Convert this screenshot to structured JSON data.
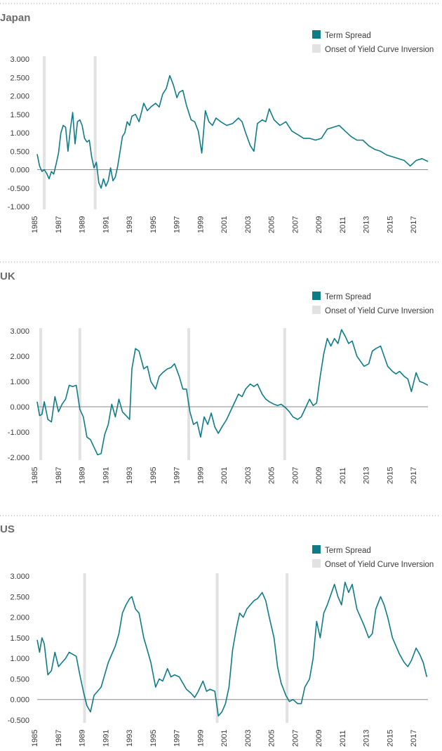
{
  "colors": {
    "term_spread": "#0e7c86",
    "inversion": "#e2e2e2",
    "axis": "#8a8a8a",
    "divider": "#9a9a9a",
    "title": "#6b6b6b",
    "text": "#3a3a3a"
  },
  "chart_data": [
    {
      "type": "line",
      "title": "Japan",
      "legend": {
        "placement": "top-right",
        "series_label": "Term Spread",
        "band_label": "Onset of Yield Curve Inversion"
      },
      "xlim": [
        1985,
        2018
      ],
      "x_ticks": [
        1985,
        1987,
        1989,
        1991,
        1993,
        1995,
        1997,
        1999,
        2001,
        2003,
        2005,
        2007,
        2009,
        2011,
        2013,
        2015,
        2017
      ],
      "ylim": [
        -1.0,
        3.0
      ],
      "y_ticks": [
        3.0,
        2.5,
        2.0,
        1.5,
        1.0,
        0.5,
        0.0,
        -0.5,
        -1.0
      ],
      "y_tick_labels": [
        "3.000",
        "2.500",
        "2.000",
        "1.500",
        "1.000",
        "0.500",
        "0.000",
        "-0.500",
        "-1.000"
      ],
      "inversion_onsets": [
        1985.6,
        1989.9
      ],
      "series": [
        {
          "name": "Term Spread",
          "x": [
            1985.0,
            1985.2,
            1985.4,
            1985.6,
            1985.8,
            1986.0,
            1986.2,
            1986.4,
            1986.6,
            1986.8,
            1987.0,
            1987.2,
            1987.4,
            1987.6,
            1987.8,
            1988.0,
            1988.2,
            1988.4,
            1988.6,
            1988.8,
            1989.0,
            1989.2,
            1989.4,
            1989.6,
            1989.8,
            1990.0,
            1990.2,
            1990.4,
            1990.6,
            1990.8,
            1991.0,
            1991.2,
            1991.4,
            1991.6,
            1991.8,
            1992.0,
            1992.2,
            1992.4,
            1992.6,
            1992.8,
            1993.0,
            1993.3,
            1993.6,
            1994.0,
            1994.3,
            1994.6,
            1995.0,
            1995.3,
            1995.6,
            1995.9,
            1996.2,
            1996.5,
            1996.8,
            1997.0,
            1997.3,
            1997.6,
            1998.0,
            1998.3,
            1998.6,
            1998.9,
            1999.2,
            1999.5,
            1999.8,
            2000.1,
            2000.5,
            2001.0,
            2001.5,
            2002.0,
            2002.3,
            2002.6,
            2003.0,
            2003.3,
            2003.6,
            2004.0,
            2004.3,
            2004.6,
            2005.0,
            2005.5,
            2006.0,
            2006.5,
            2007.0,
            2007.5,
            2008.0,
            2008.5,
            2009.0,
            2009.5,
            2010.0,
            2010.5,
            2011.0,
            2011.5,
            2012.0,
            2012.5,
            2013.0,
            2013.5,
            2014.0,
            2014.5,
            2015.0,
            2015.5,
            2016.0,
            2016.5,
            2017.0,
            2017.5,
            2018.0
          ],
          "values": [
            0.42,
            0.1,
            -0.05,
            0.0,
            -0.1,
            -0.25,
            -0.05,
            -0.12,
            0.15,
            0.45,
            1.0,
            1.2,
            1.15,
            0.5,
            1.1,
            1.55,
            0.7,
            1.3,
            1.35,
            1.2,
            0.85,
            0.75,
            0.8,
            0.35,
            0.05,
            0.2,
            -0.35,
            -0.5,
            -0.25,
            -0.45,
            -0.3,
            0.05,
            -0.3,
            -0.2,
            0.1,
            0.5,
            0.9,
            1.0,
            1.3,
            1.2,
            1.45,
            1.5,
            1.3,
            1.8,
            1.6,
            1.7,
            1.8,
            1.7,
            2.05,
            2.2,
            2.55,
            2.3,
            1.95,
            2.1,
            2.15,
            1.75,
            1.35,
            1.3,
            1.05,
            0.45,
            1.6,
            1.3,
            1.2,
            1.4,
            1.3,
            1.2,
            1.25,
            1.4,
            1.3,
            1.0,
            0.65,
            0.5,
            1.25,
            1.35,
            1.3,
            1.65,
            1.35,
            1.2,
            1.3,
            1.05,
            0.95,
            0.85,
            0.85,
            0.8,
            0.85,
            1.1,
            1.15,
            1.2,
            1.05,
            0.9,
            0.8,
            0.8,
            0.65,
            0.55,
            0.5,
            0.4,
            0.35,
            0.3,
            0.25,
            0.1,
            0.25,
            0.3,
            0.22
          ]
        }
      ]
    },
    {
      "type": "line",
      "title": "UK",
      "legend": {
        "placement": "top-right",
        "series_label": "Term Spread",
        "band_label": "Onset of Yield Curve Inversion"
      },
      "xlim": [
        1985,
        2018
      ],
      "x_ticks": [
        1985,
        1987,
        1989,
        1991,
        1993,
        1995,
        1997,
        1999,
        2001,
        2003,
        2005,
        2007,
        2009,
        2011,
        2013,
        2015,
        2017
      ],
      "ylim": [
        -2.0,
        3.0
      ],
      "y_ticks": [
        3.0,
        2.0,
        1.0,
        0.0,
        -1.0,
        -2.0
      ],
      "y_tick_labels": [
        "3.000",
        "2.000",
        "1.000",
        "0.000",
        "-1.000",
        "-2.000"
      ],
      "inversion_onsets": [
        1985.3,
        1988.6,
        1997.8,
        2005.9
      ],
      "series": [
        {
          "name": "Term Spread",
          "x": [
            1985.0,
            1985.2,
            1985.4,
            1985.6,
            1985.9,
            1986.2,
            1986.5,
            1986.8,
            1987.1,
            1987.4,
            1987.7,
            1988.0,
            1988.3,
            1988.6,
            1988.9,
            1989.2,
            1989.5,
            1989.8,
            1990.1,
            1990.4,
            1990.7,
            1991.0,
            1991.3,
            1991.6,
            1991.9,
            1992.2,
            1992.5,
            1992.8,
            1993.0,
            1993.3,
            1993.6,
            1994.0,
            1994.3,
            1994.6,
            1995.0,
            1995.3,
            1995.6,
            1996.0,
            1996.3,
            1996.6,
            1997.0,
            1997.3,
            1997.6,
            1997.9,
            1998.2,
            1998.5,
            1998.8,
            1999.1,
            1999.4,
            1999.7,
            2000.0,
            2000.3,
            2000.6,
            2001.0,
            2001.3,
            2001.6,
            2002.0,
            2002.3,
            2002.6,
            2003.0,
            2003.3,
            2003.6,
            2004.0,
            2004.3,
            2004.6,
            2005.0,
            2005.3,
            2005.6,
            2006.0,
            2006.3,
            2006.6,
            2007.0,
            2007.3,
            2007.6,
            2008.0,
            2008.3,
            2008.6,
            2008.9,
            2009.2,
            2009.5,
            2009.8,
            2010.1,
            2010.4,
            2010.7,
            2011.0,
            2011.3,
            2011.6,
            2012.0,
            2012.3,
            2012.6,
            2013.0,
            2013.3,
            2013.6,
            2014.0,
            2014.3,
            2014.6,
            2015.0,
            2015.3,
            2015.6,
            2016.0,
            2016.3,
            2016.6,
            2017.0,
            2017.3,
            2017.6,
            2018.0
          ],
          "values": [
            0.2,
            -0.35,
            -0.3,
            0.2,
            -0.5,
            -0.6,
            0.4,
            -0.2,
            0.1,
            0.3,
            0.85,
            0.8,
            0.85,
            -0.1,
            -0.4,
            -1.2,
            -1.3,
            -1.6,
            -1.9,
            -1.85,
            -1.1,
            -0.7,
            0.1,
            -0.4,
            0.3,
            -0.2,
            -0.35,
            -0.5,
            1.5,
            2.3,
            2.2,
            1.5,
            1.6,
            1.0,
            0.7,
            1.2,
            1.35,
            1.5,
            1.55,
            1.7,
            1.2,
            0.7,
            0.7,
            -0.2,
            -0.7,
            -0.6,
            -1.2,
            -0.4,
            -0.7,
            -0.25,
            -0.8,
            -1.05,
            -0.8,
            -0.5,
            -0.2,
            0.1,
            0.5,
            0.4,
            0.7,
            0.9,
            0.8,
            0.9,
            0.5,
            0.3,
            0.2,
            0.1,
            0.05,
            0.1,
            -0.05,
            -0.2,
            -0.4,
            -0.5,
            -0.4,
            -0.1,
            0.3,
            0.05,
            0.15,
            1.2,
            2.1,
            2.7,
            2.4,
            2.7,
            2.5,
            3.05,
            2.8,
            2.5,
            2.6,
            2.0,
            1.8,
            1.6,
            1.7,
            2.2,
            2.3,
            2.4,
            2.0,
            1.6,
            1.4,
            1.3,
            1.4,
            1.2,
            1.1,
            0.6,
            1.35,
            1.0,
            0.95,
            0.85
          ]
        }
      ]
    },
    {
      "type": "line",
      "title": "US",
      "legend": {
        "placement": "top-right",
        "series_label": "Term Spread",
        "band_label": "Onset of Yield Curve Inversion"
      },
      "xlim": [
        1985,
        2018
      ],
      "x_ticks": [
        1985,
        1987,
        1989,
        1991,
        1993,
        1995,
        1997,
        1999,
        2001,
        2003,
        2005,
        2007,
        2009,
        2011,
        2013,
        2015,
        2017
      ],
      "ylim": [
        -0.5,
        3.0
      ],
      "y_ticks": [
        3.0,
        2.5,
        2.0,
        1.5,
        1.0,
        0.5,
        0.0,
        -0.5
      ],
      "y_tick_labels": [
        "3.000",
        "2.500",
        "2.000",
        "1.500",
        "1.000",
        "0.500",
        "0.000",
        "-0.500"
      ],
      "inversion_onsets": [
        1989.0,
        2000.2,
        2006.1
      ],
      "series": [
        {
          "name": "Term Spread",
          "x": [
            1985.0,
            1985.2,
            1985.4,
            1985.6,
            1985.9,
            1986.2,
            1986.5,
            1986.8,
            1987.1,
            1987.4,
            1987.7,
            1988.0,
            1988.3,
            1988.6,
            1988.9,
            1989.2,
            1989.5,
            1989.8,
            1990.1,
            1990.4,
            1990.7,
            1991.0,
            1991.3,
            1991.6,
            1991.9,
            1992.2,
            1992.5,
            1992.8,
            1993.0,
            1993.3,
            1993.6,
            1994.0,
            1994.3,
            1994.6,
            1995.0,
            1995.3,
            1995.6,
            1996.0,
            1996.3,
            1996.6,
            1997.0,
            1997.3,
            1997.6,
            1998.0,
            1998.3,
            1998.6,
            1999.0,
            1999.3,
            1999.6,
            2000.0,
            2000.3,
            2000.6,
            2000.9,
            2001.2,
            2001.5,
            2001.8,
            2002.1,
            2002.4,
            2002.7,
            2003.0,
            2003.3,
            2003.6,
            2004.0,
            2004.3,
            2004.6,
            2005.0,
            2005.3,
            2005.6,
            2006.0,
            2006.3,
            2006.6,
            2007.0,
            2007.3,
            2007.6,
            2008.0,
            2008.3,
            2008.6,
            2008.9,
            2009.2,
            2009.5,
            2009.8,
            2010.1,
            2010.4,
            2010.7,
            2011.0,
            2011.3,
            2011.6,
            2012.0,
            2012.3,
            2012.6,
            2013.0,
            2013.3,
            2013.6,
            2014.0,
            2014.3,
            2014.6,
            2015.0,
            2015.3,
            2015.6,
            2016.0,
            2016.3,
            2016.6,
            2017.0,
            2017.3,
            2017.6,
            2017.9
          ],
          "values": [
            1.45,
            1.15,
            1.5,
            1.35,
            0.6,
            0.7,
            1.15,
            0.8,
            0.9,
            1.0,
            1.15,
            1.1,
            1.05,
            0.6,
            0.2,
            -0.15,
            -0.3,
            0.1,
            0.2,
            0.3,
            0.6,
            0.9,
            1.1,
            1.3,
            1.6,
            2.1,
            2.3,
            2.45,
            2.5,
            2.2,
            2.1,
            1.5,
            1.2,
            0.9,
            0.3,
            0.5,
            0.45,
            0.75,
            0.55,
            0.6,
            0.55,
            0.4,
            0.25,
            0.15,
            0.05,
            0.2,
            0.45,
            0.2,
            0.25,
            0.2,
            -0.4,
            -0.3,
            -0.1,
            0.3,
            1.2,
            1.7,
            2.1,
            2.0,
            2.2,
            2.3,
            2.4,
            2.45,
            2.6,
            2.4,
            2.0,
            1.5,
            0.8,
            0.4,
            0.1,
            -0.05,
            0.0,
            -0.1,
            -0.1,
            0.3,
            0.5,
            1.0,
            1.9,
            1.5,
            2.1,
            2.3,
            2.55,
            2.8,
            2.5,
            2.3,
            2.85,
            2.6,
            2.8,
            2.2,
            2.0,
            1.8,
            1.5,
            1.6,
            2.2,
            2.5,
            2.3,
            2.0,
            1.5,
            1.3,
            1.1,
            0.9,
            0.8,
            0.95,
            1.25,
            1.1,
            0.9,
            0.55
          ]
        }
      ]
    }
  ]
}
